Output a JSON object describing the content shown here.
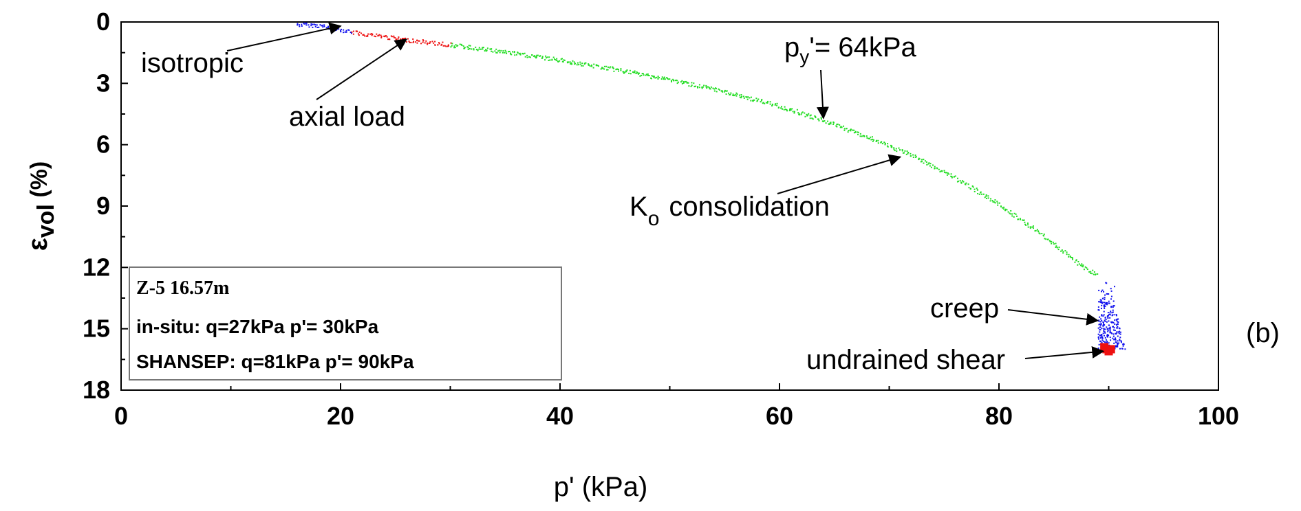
{
  "chart_data": {
    "type": "scatter",
    "panel_label": "(b)",
    "xlabel": "p' (kPa)",
    "ylabel_main": "ε",
    "ylabel_sub": "vol",
    "ylabel_unit": " (%)",
    "xlim": [
      0,
      100
    ],
    "ylim": [
      0,
      18
    ],
    "y_inverted": true,
    "grid": false,
    "xticks": [
      0,
      20,
      40,
      60,
      80,
      100
    ],
    "yticks": [
      0,
      3,
      6,
      9,
      12,
      15,
      18
    ],
    "series": [
      {
        "color": "#1010ee",
        "points": [
          [
            16,
            0.1
          ],
          [
            17,
            0.12
          ],
          [
            18,
            0.15
          ],
          [
            19,
            0.25
          ],
          [
            20,
            0.35
          ],
          [
            21,
            0.45
          ]
        ],
        "creep_cloud": {
          "p_min": 89.0,
          "p_max": 91.5,
          "eps_min": 12.7,
          "eps_max": 16.0
        }
      },
      {
        "color": "#ee1010",
        "points": [
          [
            21,
            0.48
          ],
          [
            22,
            0.55
          ],
          [
            23,
            0.62
          ],
          [
            24,
            0.7
          ],
          [
            25,
            0.78
          ],
          [
            26,
            0.85
          ],
          [
            27,
            0.92
          ],
          [
            28,
            0.98
          ],
          [
            29,
            1.04
          ],
          [
            30,
            1.1
          ]
        ]
      },
      {
        "color": "#22dd22",
        "points": [
          [
            30,
            1.1
          ],
          [
            35,
            1.45
          ],
          [
            40,
            1.85
          ],
          [
            45,
            2.3
          ],
          [
            50,
            2.8
          ],
          [
            55,
            3.4
          ],
          [
            60,
            4.1
          ],
          [
            64,
            4.8
          ],
          [
            68,
            5.6
          ],
          [
            72,
            6.5
          ],
          [
            76,
            7.6
          ],
          [
            80,
            8.9
          ],
          [
            84,
            10.4
          ],
          [
            87,
            11.7
          ],
          [
            89,
            12.4
          ]
        ]
      },
      {
        "color": "#ee1010",
        "points": [
          [
            89.6,
            15.9
          ],
          [
            89.8,
            16.0
          ],
          [
            90.0,
            16.1
          ],
          [
            90.2,
            16.0
          ]
        ]
      }
    ],
    "annotations": [
      {
        "text": "isotropic",
        "target": [
          20,
          0.2
        ]
      },
      {
        "text": "axial load",
        "target": [
          26,
          0.85
        ]
      },
      {
        "text": "= 64kPa",
        "prefix": "p",
        "subscript": "y",
        "prime": "'",
        "target": [
          64,
          4.7
        ]
      },
      {
        "text": "consolidation",
        "prefix": "K",
        "subscript": "o",
        "target": [
          71,
          6.6
        ]
      },
      {
        "text": "creep",
        "target": [
          89,
          14.6
        ]
      },
      {
        "text": "undrained shear",
        "target": [
          89.5,
          16.1
        ]
      }
    ],
    "info_box": {
      "line1": "Z-5 16.57m",
      "line2": "in-situ:  q=27kPa p'= 30kPa",
      "line3": "SHANSEP: q=81kPa p'= 90kPa"
    }
  }
}
